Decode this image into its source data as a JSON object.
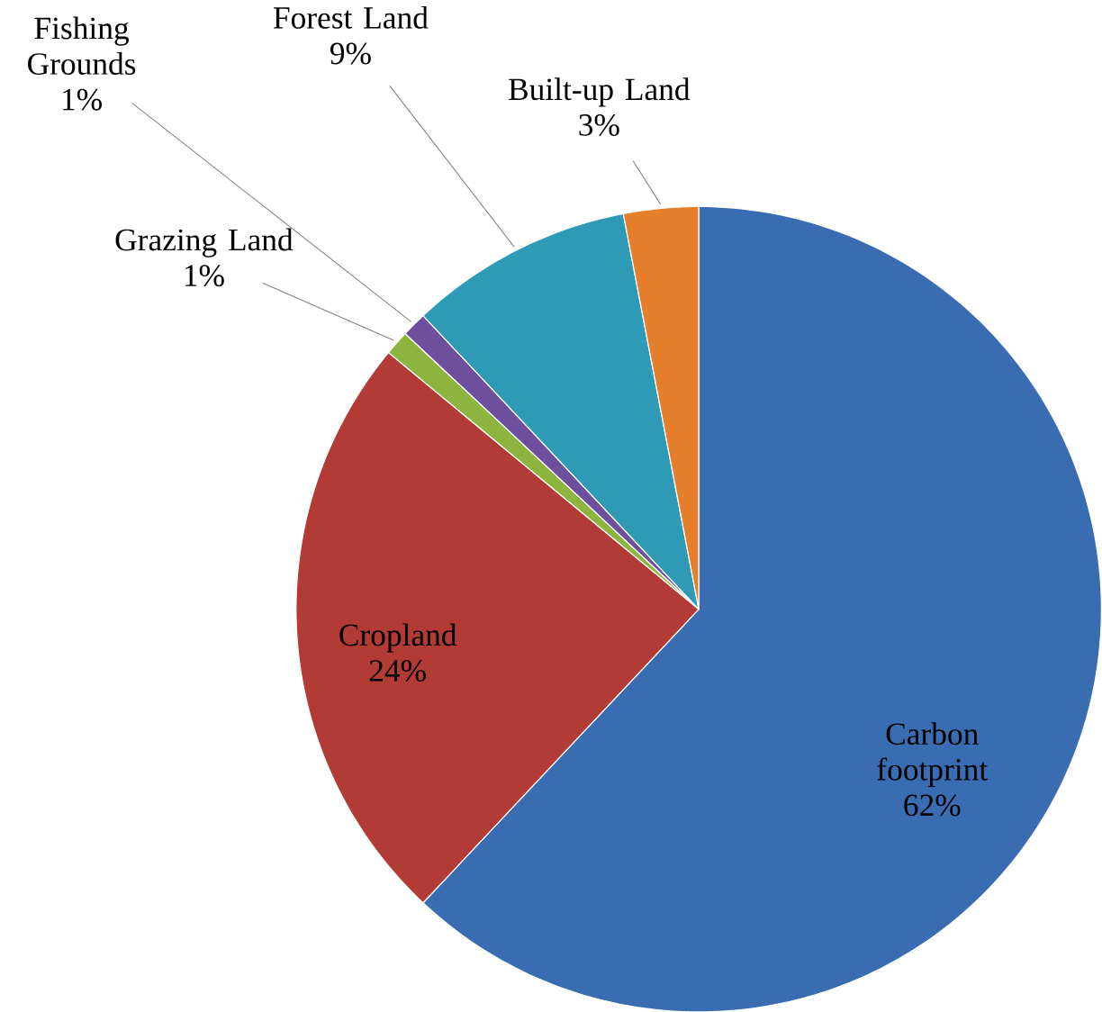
{
  "chart_data": {
    "type": "pie",
    "categories": [
      "Carbon footprint",
      "Cropland",
      "Grazing Land",
      "Fishing Grounds",
      "Forest Land",
      "Built-up Land"
    ],
    "values": [
      62,
      24,
      1,
      1,
      9,
      3
    ],
    "value_labels": [
      "62%",
      "24%",
      "1%",
      "1%",
      "9%",
      "3%"
    ],
    "colors": [
      "#3a6cb2",
      "#b23b36",
      "#8cb43f",
      "#6d4f9e",
      "#2f9ab6",
      "#e57f2b"
    ]
  }
}
